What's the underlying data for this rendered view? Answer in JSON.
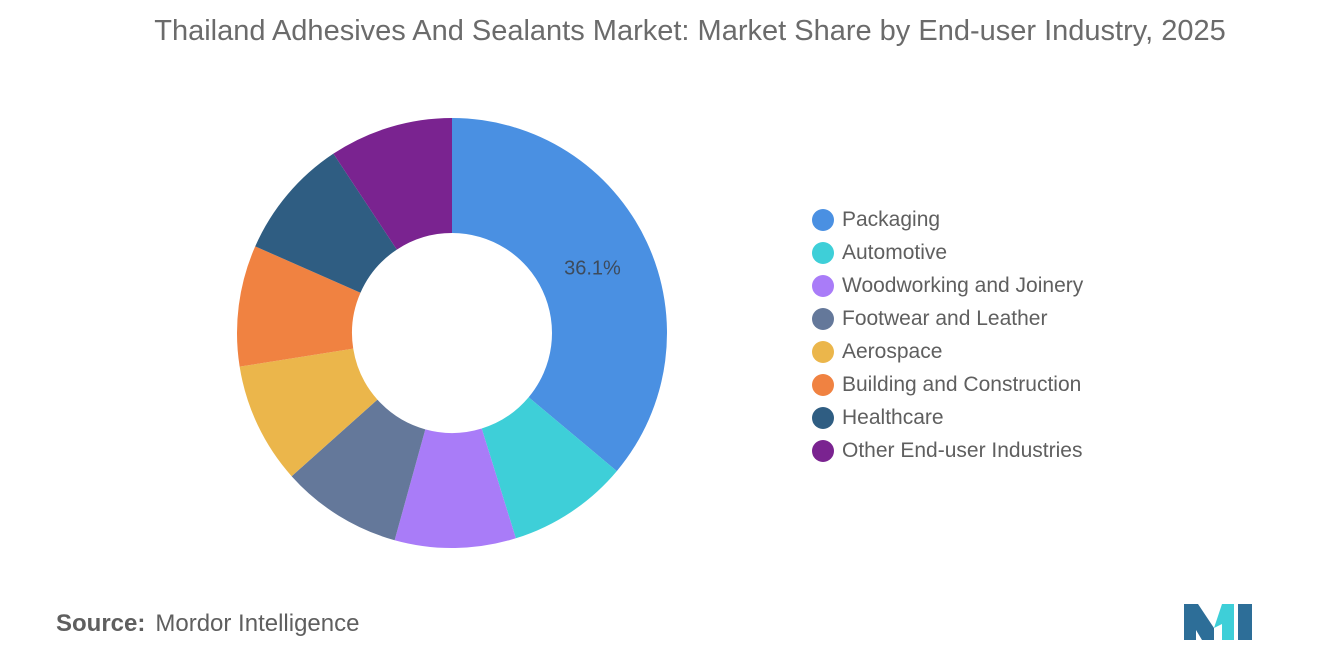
{
  "chart_data": {
    "type": "pie",
    "title": "Thailand Adhesives And Sealants Market: Market Share by End-user Industry, 2025",
    "categories": [
      "Packaging",
      "Automotive",
      "Woodworking and Joinery",
      "Footwear and Leather",
      "Aerospace",
      "Building and Construction",
      "Healthcare",
      "Other End-user Industries"
    ],
    "values": [
      36.1,
      9.1,
      9.1,
      9.1,
      9.1,
      9.1,
      9.1,
      9.3
    ],
    "data_labels": [
      "36.1%",
      "",
      "",
      "",
      "",
      "",
      "",
      ""
    ],
    "colors": [
      "#4a90e2",
      "#3ecfd8",
      "#a97cf8",
      "#64789a",
      "#ebb64b",
      "#f08241",
      "#2f5d82",
      "#7a2390"
    ],
    "donut": true,
    "legend_position": "right"
  },
  "source": {
    "label": "Source:",
    "value": "Mordor Intelligence"
  },
  "logo": {
    "name": "mordor-intelligence-logo",
    "colors": [
      "#2d6e98",
      "#3ecfd8"
    ]
  }
}
